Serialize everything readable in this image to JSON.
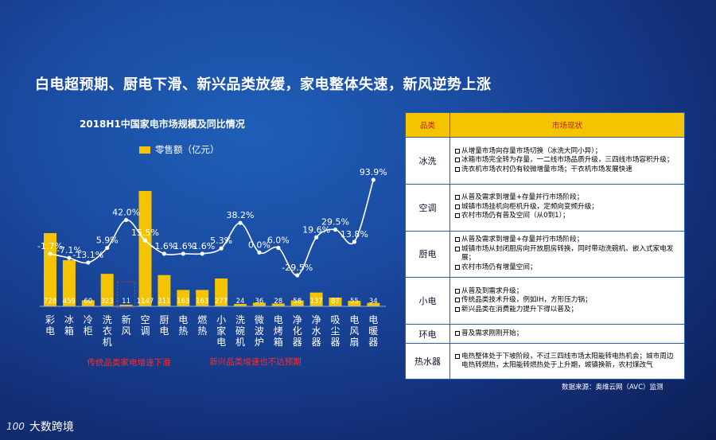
{
  "header": {
    "title": "白电超预期、厨电下滑、新兴品类放缓，家电整体失速，新风逆势上涨"
  },
  "chart_data": {
    "type": "bar",
    "title": "2018H1中国家电市场规模及同比情况",
    "series": [
      {
        "name": "零售额（亿元）",
        "values": [
          728,
          459,
          60,
          323,
          11,
          1147,
          311,
          163,
          163,
          277,
          24,
          36,
          28,
          58,
          137,
          87,
          55,
          34
        ]
      }
    ],
    "growth_labels": [
      "-1.7%",
      "-7.1%",
      "-13.1%",
      "5.9%",
      "42.0%",
      "15.5%",
      "-1.6%",
      "-1.6%",
      "-1.6%",
      "5.3%",
      "38.2%",
      "0.0%",
      "6.0%",
      "-29.5%",
      "19.6%",
      "29.5%",
      "13.8%",
      "93.9%"
    ],
    "categories": [
      "彩电",
      "冰箱",
      "冷柜",
      "洗衣机",
      "新风",
      "空调",
      "厨电",
      "电热",
      "燃热",
      "小家电",
      "洗碗机",
      "微波炉",
      "电烤箱",
      "净化器",
      "净水器",
      "吸尘器",
      "电风扇",
      "电暖器"
    ],
    "colors": {
      "bar": "#f5c400",
      "line": "#ffffff"
    }
  },
  "notes": {
    "left": "传统品类家电增速下滑",
    "right": "新兴品类增速也不达预期"
  },
  "table": {
    "col_cat": "品类",
    "col_status": "市场现状",
    "rows": [
      {
        "cat": "冰洗",
        "items": [
          "从增量市场向存量市场切换（冰洗大同小异）；",
          "冰箱市场完全转为存量，一二线市场品质升级，三四线市场容积升级；",
          "洗衣机市场农村仍有较微增量市场；干衣机市场发展快速"
        ]
      },
      {
        "cat": "空调",
        "items": [
          "从普及需求到增量+存量并行市场阶段；",
          "城镇市场挂机向柜机升级，定频向变频升级；",
          "农村市场仍有普及空间（从0到1）；"
        ]
      },
      {
        "cat": "厨电",
        "items": [
          "从普及需求到增量+存量并行市场阶段；",
          "城镇市场从封闭厨房向开放厨房转换，同时带动洗碗机、嵌入式家电发展；",
          "农村市场仍有增量空间；"
        ]
      },
      {
        "cat": "小电",
        "items": [
          "从普及到需求升级；",
          "传统品类技术升级，例如IH，方形压力锅；",
          "新兴品类在消费能力提升下得以普及；"
        ]
      },
      {
        "cat": "环电",
        "items": [
          "普及需求刚刚开始；"
        ]
      },
      {
        "cat": "热水器",
        "items": [
          "电热整体处于下坡阶段，不过三四线市场太阳能转电热机会；城市周边电热转燃热，太阳能转燃热处于上升期，城镇换新，农村煤改气"
        ]
      }
    ]
  },
  "source": "数据来源：奥维云网（AVC）监测",
  "logo": {
    "mark": "100",
    "text": "大数跨境"
  }
}
